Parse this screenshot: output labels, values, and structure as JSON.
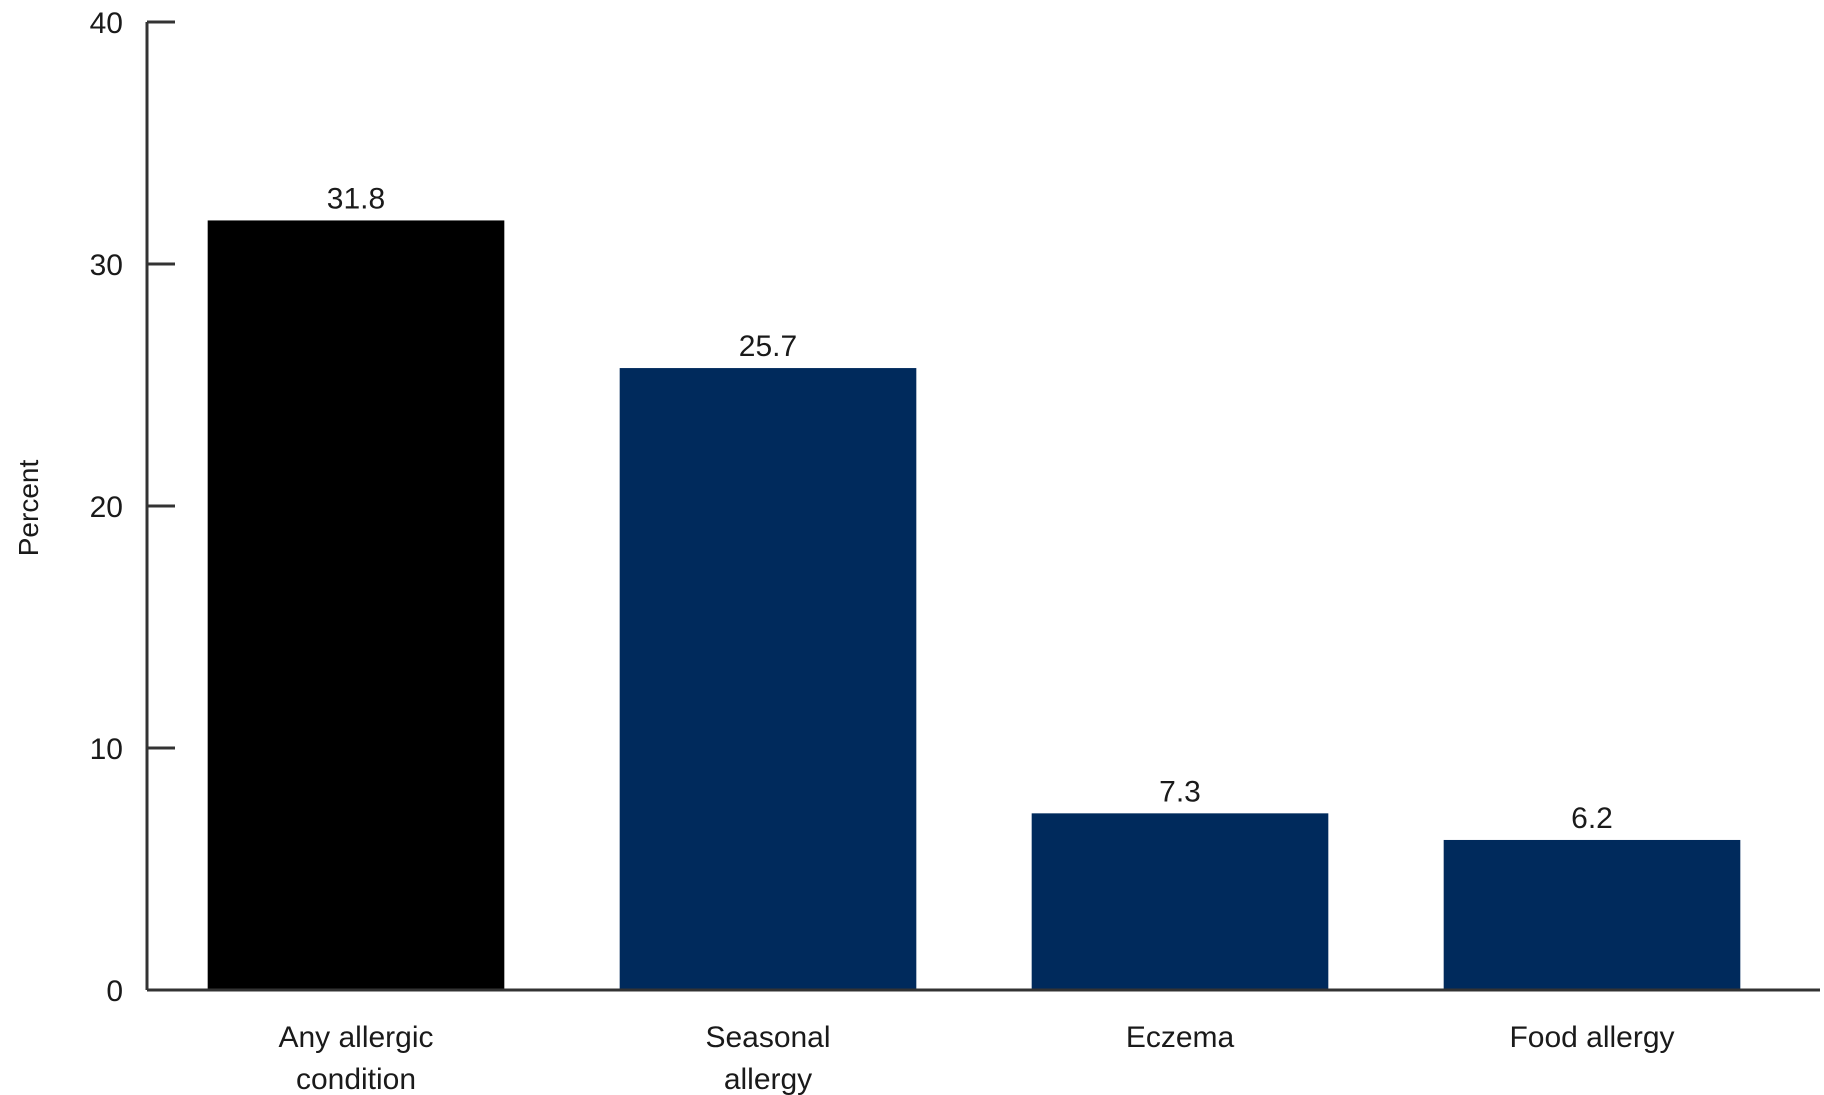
{
  "chart_data": {
    "type": "bar",
    "title": "",
    "xlabel": "",
    "ylabel": "Percent",
    "ylim": [
      0,
      40
    ],
    "yticks": [
      0,
      10,
      20,
      30,
      40
    ],
    "grid": false,
    "categories": [
      [
        "Any allergic",
        "condition"
      ],
      [
        "Seasonal",
        "allergy"
      ],
      [
        "Eczema"
      ],
      [
        "Food allergy"
      ]
    ],
    "values": [
      31.8,
      25.7,
      7.3,
      6.2
    ],
    "value_labels": [
      "31.8",
      "25.7",
      "7.3",
      "6.2"
    ],
    "bar_colors": [
      "#000000",
      "#002a5c",
      "#002a5c",
      "#002a5c"
    ],
    "axis_color": "#333333"
  }
}
